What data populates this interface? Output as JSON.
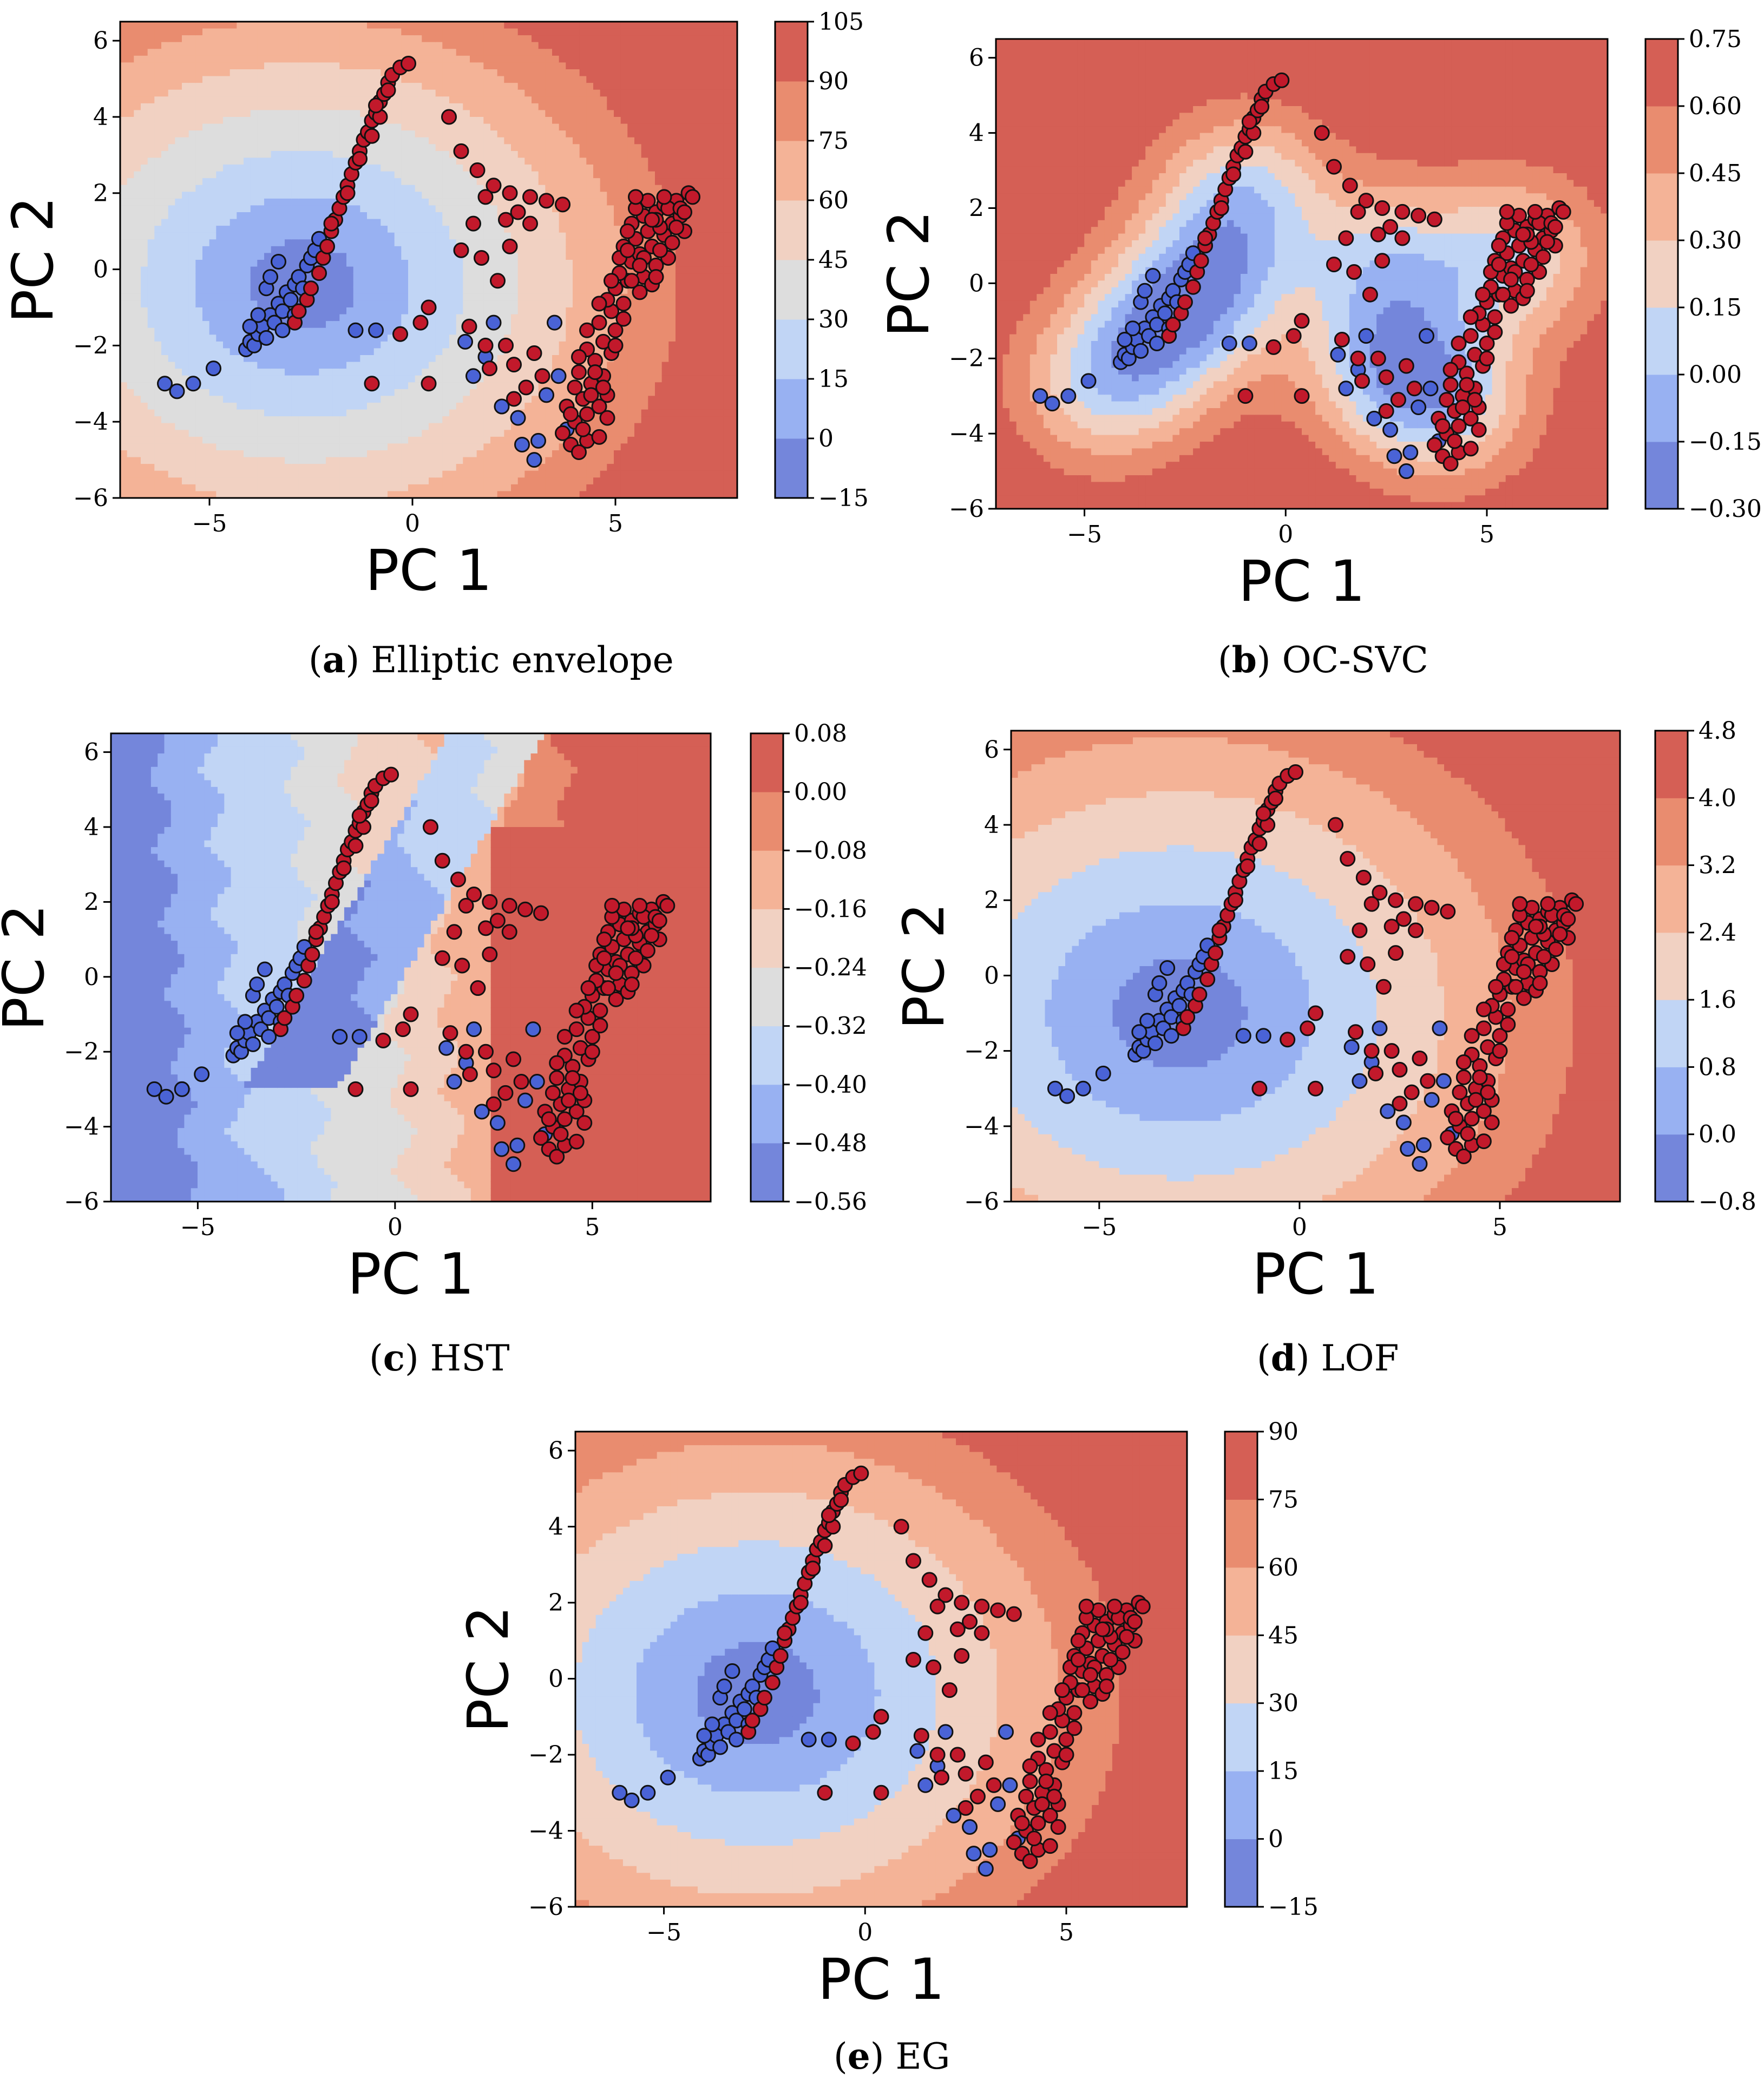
{
  "figure": {
    "captions": [
      {
        "letter": "a",
        "text": "Elliptic envelope"
      },
      {
        "letter": "b",
        "text": "OC-SVC"
      },
      {
        "letter": "c",
        "text": "HST"
      },
      {
        "letter": "d",
        "text": "LOF"
      },
      {
        "letter": "e",
        "text": "EG"
      }
    ]
  },
  "chart_data": [
    {
      "id": "a",
      "type": "scatter",
      "title": "Elliptic envelope",
      "xlabel": "PC 1",
      "ylabel": "PC 2",
      "xlim": [
        -7.2,
        8
      ],
      "ylim": [
        -6,
        6.5
      ],
      "xticks": [
        -5,
        0,
        5
      ],
      "xtick_labels": [
        "−5",
        "0",
        "5"
      ],
      "yticks": [
        -6,
        -4,
        -2,
        0,
        2,
        4,
        6
      ],
      "ytick_labels": [
        "−6",
        "−4",
        "−2",
        "0",
        "2",
        "4",
        "6"
      ],
      "colorbar": {
        "levels": [
          -15,
          0,
          15,
          30,
          45,
          60,
          75,
          90,
          105
        ],
        "labels": [
          "−15",
          "0",
          "15",
          "30",
          "45",
          "60",
          "75",
          "90",
          "105"
        ]
      },
      "contour_field": {
        "kind": "ellipse",
        "center": [
          -2.7,
          -0.4
        ],
        "radii": [
          3.3,
          2.9
        ],
        "min": -15,
        "max": 105
      },
      "background": "contour",
      "series": [
        {
          "name": "inliers",
          "color": "#4a63d6"
        },
        {
          "name": "outliers",
          "color": "#c2192b"
        }
      ]
    },
    {
      "id": "b",
      "type": "scatter",
      "title": "OC-SVC",
      "xlabel": "PC 1",
      "ylabel": "PC 2",
      "xlim": [
        -7.2,
        8
      ],
      "ylim": [
        -6,
        6.5
      ],
      "xticks": [
        -5,
        0,
        5
      ],
      "xtick_labels": [
        "−5",
        "0",
        "5"
      ],
      "yticks": [
        -6,
        -4,
        -2,
        0,
        2,
        4,
        6
      ],
      "ytick_labels": [
        "−6",
        "−4",
        "−2",
        "0",
        "2",
        "4",
        "6"
      ],
      "colorbar": {
        "levels": [
          -0.3,
          -0.15,
          0.0,
          0.15,
          0.3,
          0.45,
          0.6,
          0.75
        ],
        "labels": [
          "−0.30",
          "−0.15",
          "0.00",
          "0.15",
          "0.30",
          "0.45",
          "0.60",
          "0.75"
        ]
      },
      "contour_field": {
        "kind": "kde",
        "min": -0.3,
        "max": 0.75
      },
      "background": "contour",
      "series": [
        {
          "name": "inliers",
          "color": "#4a63d6"
        },
        {
          "name": "outliers",
          "color": "#c2192b"
        }
      ]
    },
    {
      "id": "c",
      "type": "scatter",
      "title": "HST",
      "xlabel": "PC 1",
      "ylabel": "PC 2",
      "xlim": [
        -7.2,
        8
      ],
      "ylim": [
        -6,
        6.5
      ],
      "xticks": [
        -5,
        0,
        5
      ],
      "xtick_labels": [
        "−5",
        "0",
        "5"
      ],
      "yticks": [
        -6,
        -4,
        -2,
        0,
        2,
        4,
        6
      ],
      "ytick_labels": [
        "−6",
        "−4",
        "−2",
        "0",
        "2",
        "4",
        "6"
      ],
      "colorbar": {
        "levels": [
          -0.56,
          -0.48,
          -0.4,
          -0.32,
          -0.24,
          -0.16,
          -0.08,
          0.0,
          0.08
        ],
        "labels": [
          "−0.56",
          "−0.48",
          "−0.40",
          "−0.32",
          "−0.24",
          "−0.16",
          "−0.08",
          "0.00",
          "0.08"
        ]
      },
      "contour_field": {
        "kind": "hst",
        "min": -0.56,
        "max": 0.08
      },
      "background": "contour",
      "series": [
        {
          "name": "inliers",
          "color": "#4a63d6"
        },
        {
          "name": "outliers",
          "color": "#c2192b"
        }
      ]
    },
    {
      "id": "d",
      "type": "scatter",
      "title": "LOF",
      "xlabel": "PC 1",
      "ylabel": "PC 2",
      "xlim": [
        -7.2,
        8
      ],
      "ylim": [
        -6,
        6.5
      ],
      "xticks": [
        -5,
        0,
        5
      ],
      "xtick_labels": [
        "−5",
        "0",
        "5"
      ],
      "yticks": [
        -6,
        -4,
        -2,
        0,
        2,
        4,
        6
      ],
      "ytick_labels": [
        "−6",
        "−4",
        "−2",
        "0",
        "2",
        "4",
        "6"
      ],
      "colorbar": {
        "levels": [
          -0.8,
          0.0,
          0.8,
          1.6,
          2.4,
          3.2,
          4.0,
          4.8
        ],
        "labels": [
          "−0.8",
          "0.0",
          "0.8",
          "1.6",
          "2.4",
          "3.2",
          "4.0",
          "4.8"
        ]
      },
      "contour_field": {
        "kind": "ellipse",
        "center": [
          -3.0,
          -1.0
        ],
        "radii": [
          3.6,
          3.2
        ],
        "min": -0.8,
        "max": 4.8
      },
      "background": "contour",
      "series": [
        {
          "name": "inliers",
          "color": "#4a63d6"
        },
        {
          "name": "outliers",
          "color": "#c2192b"
        }
      ]
    },
    {
      "id": "e",
      "type": "scatter",
      "title": "EG",
      "xlabel": "PC 1",
      "ylabel": "PC 2",
      "xlim": [
        -7.2,
        8
      ],
      "ylim": [
        -6,
        6.5
      ],
      "xticks": [
        -5,
        0,
        5
      ],
      "xtick_labels": [
        "−5",
        "0",
        "5"
      ],
      "yticks": [
        -6,
        -4,
        -2,
        0,
        2,
        4,
        6
      ],
      "ytick_labels": [
        "−6",
        "−4",
        "−2",
        "0",
        "2",
        "4",
        "6"
      ],
      "colorbar": {
        "levels": [
          -15,
          0,
          15,
          30,
          45,
          60,
          75,
          90
        ],
        "labels": [
          "−15",
          "0",
          "15",
          "30",
          "45",
          "60",
          "75",
          "90"
        ]
      },
      "contour_field": {
        "kind": "ellipse",
        "center": [
          -2.7,
          -0.4
        ],
        "radii": [
          3.3,
          2.9
        ],
        "min": -15,
        "max": 90
      },
      "background": "contour",
      "series": [
        {
          "name": "inliers",
          "color": "#4a63d6"
        },
        {
          "name": "outliers",
          "color": "#c2192b"
        }
      ]
    }
  ],
  "points": {
    "inliers": [
      [
        -6.1,
        -3.0
      ],
      [
        -5.8,
        -3.2
      ],
      [
        -5.4,
        -3.0
      ],
      [
        -4.9,
        -2.6
      ],
      [
        -4.1,
        -2.1
      ],
      [
        -4.0,
        -1.9
      ],
      [
        -3.9,
        -2.0
      ],
      [
        -3.8,
        -1.7
      ],
      [
        -3.7,
        -1.5
      ],
      [
        -3.6,
        -1.8
      ],
      [
        -3.5,
        -1.2
      ],
      [
        -3.4,
        -1.4
      ],
      [
        -3.3,
        -0.9
      ],
      [
        -3.2,
        -1.1
      ],
      [
        -3.1,
        -0.6
      ],
      [
        -3.0,
        -0.8
      ],
      [
        -2.9,
        -0.4
      ],
      [
        -2.8,
        -0.2
      ],
      [
        -2.7,
        -0.5
      ],
      [
        -2.6,
        0.1
      ],
      [
        -2.5,
        0.3
      ],
      [
        -3.6,
        -0.5
      ],
      [
        -3.5,
        -0.2
      ],
      [
        -3.3,
        0.2
      ],
      [
        -2.4,
        0.5
      ],
      [
        -2.3,
        0.8
      ],
      [
        -3.8,
        -1.2
      ],
      [
        -4.0,
        -1.5
      ],
      [
        -3.2,
        -1.6
      ],
      [
        -2.9,
        -1.2
      ],
      [
        1.8,
        -2.3
      ],
      [
        1.5,
        -2.8
      ],
      [
        2.0,
        -1.4
      ],
      [
        1.3,
        -1.9
      ],
      [
        2.2,
        -3.6
      ],
      [
        2.6,
        -3.9
      ],
      [
        3.0,
        -5.0
      ],
      [
        2.7,
        -4.6
      ],
      [
        3.5,
        -1.4
      ],
      [
        3.6,
        -2.8
      ],
      [
        3.3,
        -3.3
      ],
      [
        3.8,
        -4.2
      ],
      [
        -1.4,
        -1.6
      ],
      [
        -0.9,
        -1.6
      ],
      [
        3.1,
        -4.5
      ]
    ],
    "outliers": [
      [
        -2.9,
        -1.4
      ],
      [
        -2.8,
        -1.1
      ],
      [
        -2.6,
        -0.8
      ],
      [
        -2.5,
        -0.5
      ],
      [
        -2.3,
        -0.1
      ],
      [
        -2.2,
        0.3
      ],
      [
        -2.1,
        0.6
      ],
      [
        -2.0,
        1.0
      ],
      [
        -1.9,
        1.3
      ],
      [
        -1.8,
        1.6
      ],
      [
        -1.7,
        1.9
      ],
      [
        -1.6,
        2.2
      ],
      [
        -1.5,
        2.5
      ],
      [
        -1.4,
        2.8
      ],
      [
        -1.3,
        3.1
      ],
      [
        -1.2,
        3.4
      ],
      [
        -1.1,
        3.6
      ],
      [
        -1.0,
        3.9
      ],
      [
        -0.9,
        4.1
      ],
      [
        -0.8,
        4.4
      ],
      [
        -0.7,
        4.6
      ],
      [
        -0.6,
        4.9
      ],
      [
        -0.5,
        5.1
      ],
      [
        -0.3,
        5.3
      ],
      [
        -0.1,
        5.4
      ],
      [
        -1.0,
        3.5
      ],
      [
        -1.3,
        2.9
      ],
      [
        -0.8,
        4.0
      ],
      [
        -1.6,
        2.0
      ],
      [
        -2.0,
        1.2
      ],
      [
        -0.6,
        4.7
      ],
      [
        -0.9,
        4.3
      ],
      [
        0.9,
        4.0
      ],
      [
        1.2,
        3.1
      ],
      [
        1.6,
        2.6
      ],
      [
        2.0,
        2.2
      ],
      [
        2.4,
        2.0
      ],
      [
        2.9,
        1.9
      ],
      [
        3.3,
        1.8
      ],
      [
        3.7,
        1.7
      ],
      [
        1.8,
        1.9
      ],
      [
        2.3,
        1.3
      ],
      [
        2.6,
        1.5
      ],
      [
        1.5,
        1.2
      ],
      [
        1.2,
        0.5
      ],
      [
        1.7,
        0.3
      ],
      [
        2.4,
        0.6
      ],
      [
        2.9,
        1.2
      ],
      [
        2.1,
        -0.3
      ],
      [
        0.4,
        -1.0
      ],
      [
        0.2,
        -1.4
      ],
      [
        -0.3,
        -1.7
      ],
      [
        -1.0,
        -3.0
      ],
      [
        0.4,
        -3.0
      ],
      [
        1.4,
        -1.5
      ],
      [
        1.8,
        -2.0
      ],
      [
        2.3,
        -2.0
      ],
      [
        1.9,
        -2.6
      ],
      [
        2.5,
        -2.5
      ],
      [
        3.0,
        -2.2
      ],
      [
        3.2,
        -2.8
      ],
      [
        2.8,
        -3.1
      ],
      [
        2.5,
        -3.4
      ],
      [
        3.7,
        -4.3
      ],
      [
        3.9,
        -4.6
      ],
      [
        4.1,
        -4.8
      ],
      [
        4.3,
        -4.5
      ],
      [
        4.6,
        -4.4
      ],
      [
        4.0,
        -4.0
      ],
      [
        4.3,
        -3.8
      ],
      [
        4.6,
        -3.6
      ],
      [
        4.8,
        -3.3
      ],
      [
        4.2,
        -3.4
      ],
      [
        4.0,
        -3.1
      ],
      [
        4.4,
        -3.0
      ],
      [
        4.7,
        -2.8
      ],
      [
        4.1,
        -2.7
      ],
      [
        4.5,
        -2.4
      ],
      [
        4.9,
        -2.2
      ],
      [
        4.3,
        -2.1
      ],
      [
        4.7,
        -1.9
      ],
      [
        5.0,
        -1.6
      ],
      [
        4.6,
        -1.4
      ],
      [
        4.9,
        -1.1
      ],
      [
        5.2,
        -0.9
      ],
      [
        5.0,
        -0.5
      ],
      [
        5.3,
        -0.3
      ],
      [
        5.1,
        -0.1
      ],
      [
        5.4,
        0.2
      ],
      [
        5.6,
        0.4
      ],
      [
        5.2,
        0.6
      ],
      [
        5.5,
        0.8
      ],
      [
        5.8,
        1.0
      ],
      [
        5.4,
        1.2
      ],
      [
        5.7,
        1.4
      ],
      [
        6.0,
        1.5
      ],
      [
        6.2,
        1.7
      ],
      [
        6.5,
        1.8
      ],
      [
        6.8,
        2.0
      ],
      [
        5.9,
        0.6
      ],
      [
        6.2,
        0.9
      ],
      [
        6.4,
        1.2
      ],
      [
        6.6,
        1.4
      ],
      [
        5.7,
        -0.2
      ],
      [
        6.0,
        0.1
      ],
      [
        6.3,
        0.3
      ],
      [
        5.6,
        -0.6
      ],
      [
        5.9,
        -0.4
      ],
      [
        6.1,
        0.5
      ],
      [
        6.4,
        0.7
      ],
      [
        6.7,
        1.0
      ],
      [
        5.5,
        1.6
      ],
      [
        5.8,
        1.8
      ],
      [
        6.1,
        1.1
      ],
      [
        4.8,
        -0.8
      ],
      [
        5.1,
        0.3
      ],
      [
        5.4,
        -0.3
      ],
      [
        5.7,
        0.3
      ],
      [
        6.0,
        1.3
      ],
      [
        5.3,
        1.0
      ],
      [
        5.6,
        0.1
      ],
      [
        5.9,
        1.3
      ],
      [
        4.4,
        -3.3
      ],
      [
        4.8,
        -3.9
      ],
      [
        4.2,
        -4.2
      ],
      [
        3.8,
        -3.6
      ],
      [
        4.5,
        -2.7
      ],
      [
        3.9,
        -3.8
      ],
      [
        4.7,
        -3.1
      ],
      [
        4.1,
        -2.3
      ],
      [
        4.3,
        -1.6
      ],
      [
        5.2,
        -1.3
      ],
      [
        4.6,
        -0.9
      ],
      [
        5.5,
        1.9
      ],
      [
        6.3,
        1.6
      ],
      [
        6.6,
        1.6
      ],
      [
        4.9,
        -0.3
      ],
      [
        6.9,
        1.9
      ],
      [
        6.0,
        -0.2
      ],
      [
        5.3,
        0.5
      ],
      [
        6.2,
        1.9
      ],
      [
        6.5,
        1.1
      ],
      [
        6.7,
        1.5
      ],
      [
        5.0,
        -2.0
      ]
    ]
  }
}
